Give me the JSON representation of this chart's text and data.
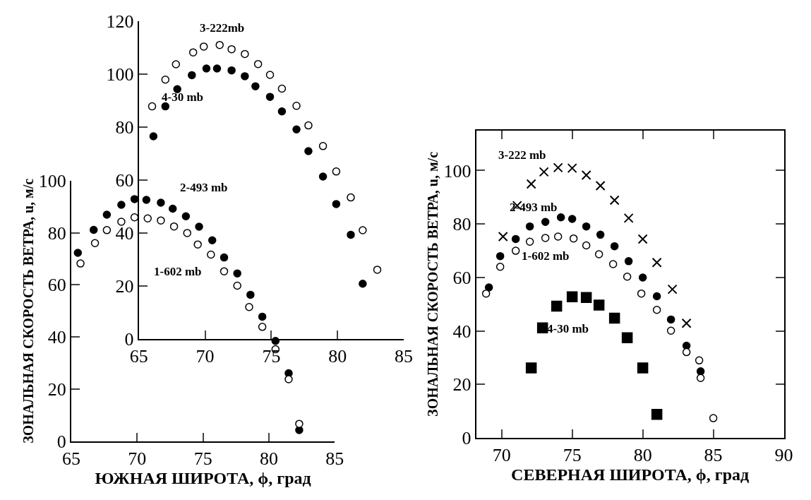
{
  "chart_data": [
    {
      "type": "scatter",
      "xlabel": "ЮЖНАЯ ШИРОТА, ϕ, град",
      "ylabel": "ЗОНАЛЬНАЯ СКОРОСТЬ ВЕТРА, u, м/с",
      "xlim": [
        65,
        85
      ],
      "ylim": [
        0,
        100
      ],
      "xticks": [
        65,
        70,
        75,
        80,
        85
      ],
      "yticks": [
        0,
        20,
        40,
        60,
        80,
        100
      ],
      "grid": false,
      "series": [
        {
          "name": "2-493 mb",
          "color": "#000000",
          "marker": "circle",
          "x": [
            65.5,
            66.7,
            67.7,
            68.8,
            69.8,
            70.7,
            71.8,
            72.7,
            73.7,
            74.7,
            75.7,
            76.6,
            77.6,
            78.6,
            79.5,
            80.5,
            81.5,
            82.3
          ],
          "values": [
            72.3,
            81.1,
            86.9,
            90.7,
            92.9,
            92.6,
            91.5,
            89.2,
            86.3,
            82.3,
            77.1,
            70.5,
            64.4,
            56.2,
            47.8,
            38.5,
            26.1,
            4.3
          ]
        },
        {
          "name": "1-602 mb",
          "color": "#ffffff",
          "marker": "circle",
          "x": [
            65.7,
            66.8,
            67.7,
            68.8,
            69.8,
            70.8,
            71.8,
            72.8,
            73.8,
            74.6,
            75.6,
            76.6,
            77.6,
            78.5,
            79.5,
            80.5,
            81.5,
            82.3
          ],
          "values": [
            68.2,
            76.0,
            81.0,
            84.2,
            85.9,
            85.5,
            84.7,
            82.4,
            79.9,
            75.5,
            71.6,
            65.2,
            59.7,
            51.5,
            43.9,
            35.3,
            23.8,
            6.7
          ]
        }
      ]
    },
    {
      "type": "scatter",
      "xlim": [
        65,
        85
      ],
      "ylim": [
        0,
        120
      ],
      "xticks": [
        65,
        70,
        75,
        80,
        85
      ],
      "yticks": [
        0,
        20,
        40,
        60,
        80,
        100,
        120
      ],
      "grid": false,
      "series": [
        {
          "name": "3-222mb",
          "color": "#ffffff",
          "marker": "circle",
          "x": [
            66.0,
            67.0,
            67.8,
            69.1,
            69.9,
            71.1,
            72.0,
            73.0,
            74.0,
            74.9,
            75.8,
            76.9,
            77.8,
            78.9,
            79.9,
            81.0,
            81.9,
            83.0
          ],
          "values": [
            87.9,
            98.0,
            103.8,
            108.3,
            110.5,
            111.1,
            109.5,
            107.7,
            103.9,
            99.8,
            94.6,
            88.1,
            80.7,
            72.9,
            63.3,
            53.5,
            41.1,
            26.2
          ]
        },
        {
          "name": "4-30 mb",
          "color": "#000000",
          "marker": "circle",
          "x": [
            66.1,
            67.0,
            67.9,
            69.0,
            70.1,
            70.9,
            72.0,
            73.0,
            73.8,
            74.9,
            75.8,
            76.9,
            77.8,
            78.9,
            79.9,
            81.0,
            81.9
          ],
          "values": [
            76.6,
            87.9,
            94.4,
            99.7,
            102.2,
            102.2,
            101.5,
            99.3,
            95.5,
            91.5,
            86.0,
            79.2,
            71.0,
            61.4,
            51.0,
            39.4,
            20.9
          ]
        }
      ]
    },
    {
      "type": "scatter",
      "xlabel": "СЕВЕРНАЯ ШИРОТА, ϕ, град",
      "ylabel": "ЗОНАЛЬНАЯ СКОРОСТЬ ВЕТРА, u, м/с",
      "xlim": [
        68.2,
        90
      ],
      "ylim": [
        0,
        115
      ],
      "xticks": [
        70,
        75,
        80,
        85,
        90
      ],
      "yticks": [
        0,
        20,
        40,
        60,
        80,
        100
      ],
      "grid": false,
      "series": [
        {
          "name": "3-222 mb",
          "color": "#000000",
          "marker": "cross",
          "x": [
            70.1,
            71.1,
            72.1,
            73.0,
            74.0,
            75.0,
            76.0,
            77.0,
            78.0,
            79.0,
            80.0,
            81.0,
            82.1,
            83.1
          ],
          "values": [
            75.3,
            86.9,
            95.0,
            99.5,
            101.1,
            100.9,
            98.3,
            94.3,
            88.9,
            82.2,
            74.4,
            65.6,
            55.6,
            42.9
          ]
        },
        {
          "name": "4-30 mb",
          "color": "#000000",
          "marker": "square",
          "x": [
            72.1,
            72.9,
            73.9,
            75.0,
            76.0,
            76.9,
            78.0,
            78.9,
            80.0,
            81.0
          ],
          "values": [
            26.2,
            41.2,
            49.3,
            52.8,
            52.5,
            49.7,
            44.8,
            37.5,
            26.2,
            8.8
          ]
        },
        {
          "name": "2-493 mb",
          "color": "#000000",
          "marker": "circle",
          "x": [
            69.1,
            69.9,
            71.0,
            72.0,
            73.1,
            74.2,
            75.0,
            76.0,
            77.0,
            78.0,
            79.0,
            80.0,
            81.0,
            82.0,
            83.1,
            84.1
          ],
          "values": [
            56.3,
            68.0,
            74.4,
            79.1,
            80.8,
            82.5,
            81.9,
            79.1,
            76.0,
            71.7,
            66.1,
            60.0,
            53.0,
            44.3,
            34.5,
            24.9
          ]
        },
        {
          "name": "1-602 mb",
          "color": "#ffffff",
          "marker": "circle",
          "x": [
            68.9,
            69.9,
            71.0,
            72.0,
            73.1,
            74.0,
            75.1,
            76.0,
            76.9,
            77.9,
            78.9,
            79.9,
            81.0,
            82.0,
            83.1,
            84.0,
            84.1,
            85.0
          ],
          "values": [
            54.0,
            64.0,
            70.0,
            73.4,
            74.8,
            75.3,
            74.6,
            72.0,
            68.7,
            65.0,
            60.3,
            54.0,
            47.9,
            40.1,
            32.1,
            29.0,
            22.4,
            7.4
          ]
        }
      ]
    }
  ]
}
